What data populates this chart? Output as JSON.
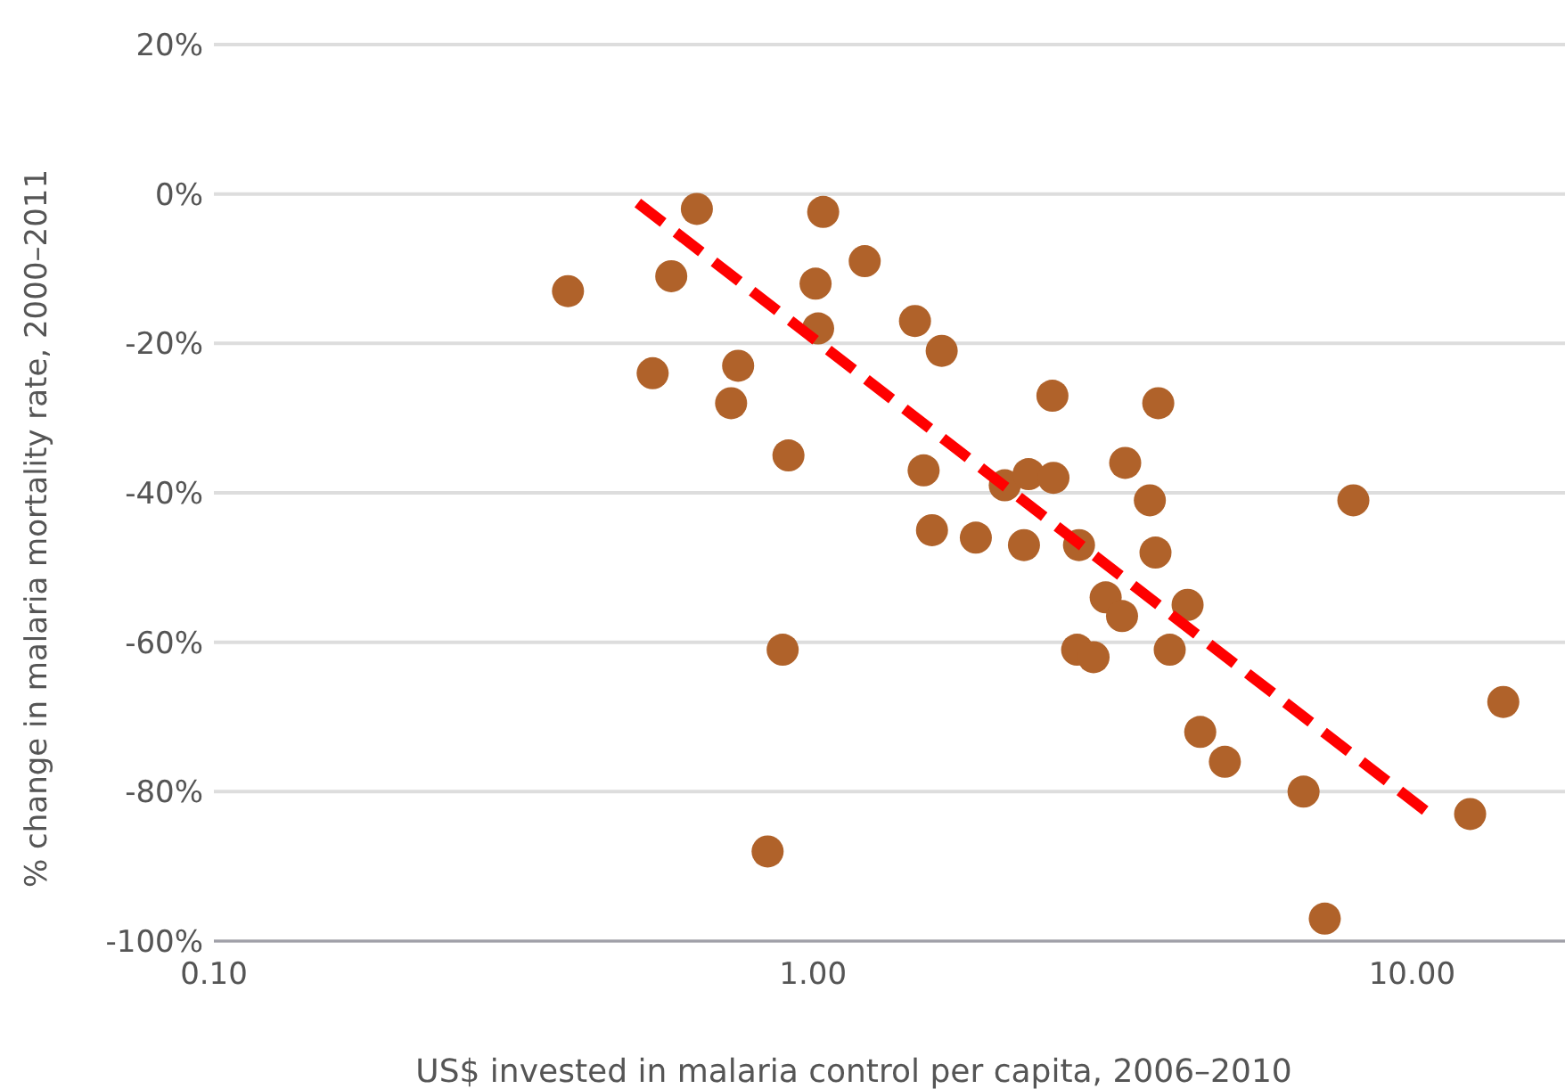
{
  "chart_data": {
    "type": "scatter",
    "xlabel": "US$ invested in malaria control per capita, 2006–2010",
    "ylabel": "% change in malaria mortality rate, 2000–2011",
    "log": "x",
    "grid": "y",
    "xlim": [
      0.1,
      18
    ],
    "ylim": [
      -100,
      20
    ],
    "xticks": [
      {
        "value": 0.1,
        "label": "0.10"
      },
      {
        "value": 1,
        "label": "1.00"
      },
      {
        "value": 10,
        "label": "10.00"
      }
    ],
    "yticks": [
      {
        "value": -100,
        "label": "-100%"
      },
      {
        "value": -80,
        "label": "-80%"
      },
      {
        "value": -60,
        "label": "-60%"
      },
      {
        "value": -40,
        "label": "-40%"
      },
      {
        "value": -20,
        "label": "-20%"
      },
      {
        "value": 0,
        "label": "0%"
      },
      {
        "value": 20,
        "label": "20%"
      }
    ],
    "series": [
      {
        "color": "#b0622a",
        "marker": "circle",
        "x": [
          0.39,
          0.54,
          0.58,
          0.64,
          0.73,
          0.75,
          0.91,
          0.89,
          0.84,
          1.01,
          1.02,
          1.04,
          1.22,
          1.48,
          1.64,
          1.53,
          1.58,
          1.87,
          2.09,
          2.29,
          2.25,
          2.51,
          2.52,
          2.78,
          2.76,
          2.94,
          3.08,
          3.28,
          3.32,
          3.65,
          3.73,
          3.77,
          3.94,
          4.22,
          4.43,
          4.87,
          6.59,
          7.15,
          7.98,
          12.5,
          14.2
        ],
        "values": [
          -13,
          -24,
          -11,
          -2,
          -28,
          -23,
          -35,
          -61,
          -88,
          -12,
          -18,
          -2.4,
          -9,
          -17,
          -21,
          -37,
          -45,
          -46,
          -39,
          -37.5,
          -47,
          -27,
          -38,
          -47,
          -61,
          -62,
          -54,
          -56.5,
          -36,
          -41,
          -48,
          -28,
          -61,
          -55,
          -72,
          -76,
          -80,
          -97,
          -41,
          -83,
          -68
        ]
      },
      {
        "type": "line",
        "color": "#ff0000",
        "line_style": "dashed",
        "x": [
          0.51,
          10.9
        ],
        "values": [
          -1.2,
          -83.5
        ]
      }
    ]
  }
}
